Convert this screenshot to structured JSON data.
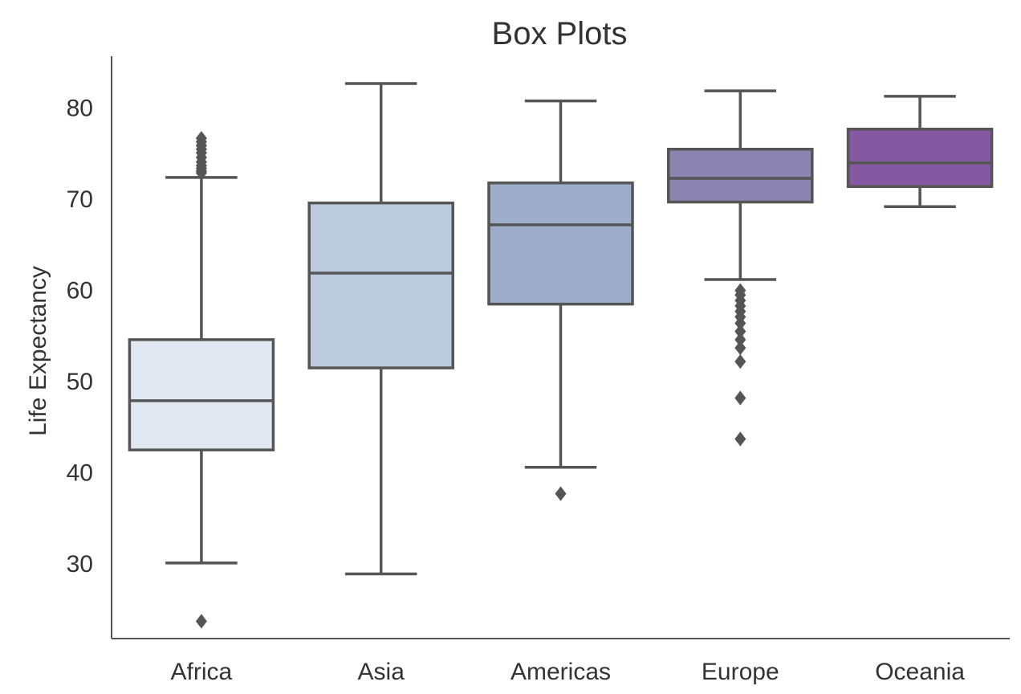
{
  "chart_data": {
    "type": "box",
    "title": "Box Plots",
    "xlabel": "",
    "ylabel": "Life Expectancy",
    "ylim": [
      21.7,
      85.6
    ],
    "yticks": [
      30,
      40,
      50,
      60,
      70,
      80
    ],
    "grid": false,
    "categories": [
      "Africa",
      "Asia",
      "Americas",
      "Europe",
      "Oceania"
    ],
    "boxes": [
      {
        "name": "Africa",
        "color": "#e1e8f2",
        "whisker_low": 30.0,
        "q1": 42.4,
        "median": 47.8,
        "q3": 54.5,
        "whisker_high": 72.3,
        "outliers": [
          23.6,
          72.8,
          73.0,
          73.3,
          73.6,
          74.0,
          74.5,
          75.0,
          75.4,
          75.8,
          76.2,
          76.6
        ]
      },
      {
        "name": "Asia",
        "color": "#bccbde",
        "whisker_low": 28.8,
        "q1": 51.4,
        "median": 61.8,
        "q3": 69.5,
        "whisker_high": 82.6,
        "outliers": []
      },
      {
        "name": "Americas",
        "color": "#9eaeca",
        "whisker_low": 40.5,
        "q1": 58.4,
        "median": 67.1,
        "q3": 71.7,
        "whisker_high": 80.7,
        "outliers": [
          37.6
        ]
      },
      {
        "name": "Europe",
        "color": "#8c85b1",
        "whisker_low": 61.1,
        "q1": 69.6,
        "median": 72.2,
        "q3": 75.4,
        "whisker_high": 81.8,
        "outliers": [
          43.6,
          48.1,
          52.1,
          53.6,
          54.5,
          55.4,
          56.3,
          57.0,
          57.6,
          58.2,
          58.8,
          59.4,
          59.9
        ]
      },
      {
        "name": "Oceania",
        "color": "#8458a2",
        "whisker_low": 69.1,
        "q1": 71.3,
        "median": 73.9,
        "q3": 77.6,
        "whisker_high": 81.2,
        "outliers": []
      }
    ]
  }
}
